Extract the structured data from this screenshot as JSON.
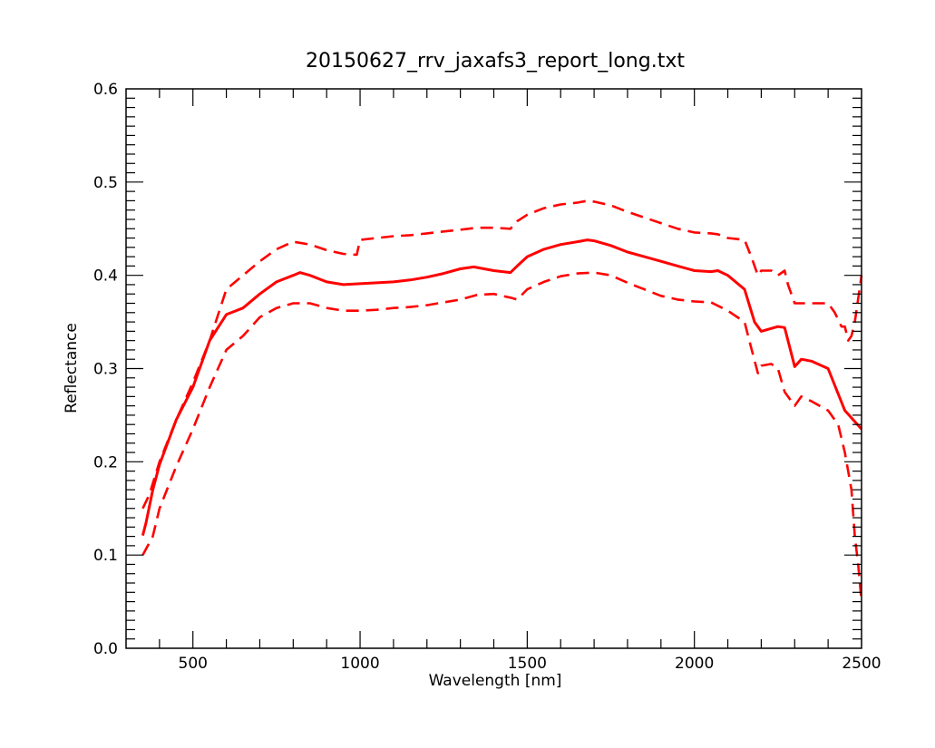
{
  "chart_data": {
    "type": "line",
    "title": "20150627_rrv_jaxafs3_report_long.txt",
    "xlabel": "Wavelength [nm]",
    "ylabel": "Reflectance",
    "xlim": [
      300,
      2500
    ],
    "ylim": [
      0.0,
      0.6
    ],
    "grid": false,
    "legend": "none",
    "x_ticks": [
      500,
      1000,
      1500,
      2000,
      2500
    ],
    "x_tick_labels": [
      "500",
      "1000",
      "1500",
      "2000",
      "2500"
    ],
    "y_ticks": [
      0.0,
      0.1,
      0.2,
      0.3,
      0.4,
      0.5,
      0.6
    ],
    "y_tick_labels": [
      "0.0",
      "0.1",
      "0.2",
      "0.3",
      "0.4",
      "0.5",
      "0.6"
    ],
    "series": [
      {
        "style": "solid",
        "color": "#ff0000",
        "x": [
          350,
          360,
          380,
          400,
          450,
          500,
          550,
          600,
          650,
          700,
          750,
          800,
          820,
          850,
          900,
          950,
          1000,
          1050,
          1100,
          1150,
          1200,
          1250,
          1300,
          1340,
          1400,
          1450,
          1470,
          1500,
          1550,
          1600,
          1650,
          1680,
          1700,
          1750,
          1800,
          1850,
          1900,
          1950,
          2000,
          2050,
          2070,
          2100,
          2150,
          2180,
          2200,
          2220,
          2250,
          2270,
          2300,
          2320,
          2350,
          2400,
          2450,
          2500
        ],
        "y": [
          0.121,
          0.135,
          0.17,
          0.197,
          0.245,
          0.28,
          0.33,
          0.358,
          0.365,
          0.38,
          0.393,
          0.4,
          0.403,
          0.4,
          0.393,
          0.39,
          0.391,
          0.392,
          0.393,
          0.395,
          0.398,
          0.402,
          0.407,
          0.409,
          0.405,
          0.403,
          0.41,
          0.42,
          0.428,
          0.433,
          0.436,
          0.438,
          0.437,
          0.432,
          0.425,
          0.42,
          0.415,
          0.41,
          0.405,
          0.404,
          0.405,
          0.4,
          0.385,
          0.35,
          0.34,
          0.342,
          0.345,
          0.344,
          0.302,
          0.31,
          0.308,
          0.3,
          0.255,
          0.235
        ]
      },
      {
        "style": "dashed",
        "color": "#ff0000",
        "x": [
          350,
          370,
          400,
          450,
          500,
          550,
          600,
          650,
          700,
          750,
          800,
          850,
          900,
          950,
          990,
          1000,
          1050,
          1100,
          1150,
          1200,
          1250,
          1300,
          1350,
          1400,
          1450,
          1470,
          1500,
          1550,
          1600,
          1650,
          1680,
          1700,
          1750,
          1800,
          1850,
          1900,
          1950,
          2000,
          2050,
          2070,
          2100,
          2150,
          2170,
          2190,
          2200,
          2230,
          2250,
          2270,
          2280,
          2300,
          2350,
          2400,
          2420,
          2440,
          2450,
          2460,
          2470,
          2480,
          2500
        ],
        "y": [
          0.15,
          0.165,
          0.2,
          0.245,
          0.285,
          0.33,
          0.385,
          0.4,
          0.415,
          0.428,
          0.436,
          0.433,
          0.427,
          0.423,
          0.422,
          0.438,
          0.44,
          0.442,
          0.443,
          0.445,
          0.447,
          0.449,
          0.451,
          0.451,
          0.45,
          0.458,
          0.465,
          0.472,
          0.476,
          0.478,
          0.48,
          0.479,
          0.475,
          0.468,
          0.462,
          0.456,
          0.45,
          0.446,
          0.445,
          0.444,
          0.44,
          0.438,
          0.42,
          0.4,
          0.405,
          0.405,
          0.4,
          0.405,
          0.39,
          0.37,
          0.37,
          0.37,
          0.36,
          0.345,
          0.345,
          0.33,
          0.335,
          0.35,
          0.4
        ]
      },
      {
        "style": "dashed",
        "color": "#ff0000",
        "x": [
          350,
          380,
          400,
          450,
          500,
          550,
          600,
          650,
          700,
          750,
          800,
          850,
          900,
          950,
          1000,
          1050,
          1100,
          1150,
          1200,
          1250,
          1300,
          1350,
          1400,
          1450,
          1470,
          1500,
          1550,
          1600,
          1650,
          1700,
          1750,
          1800,
          1850,
          1900,
          1950,
          2000,
          2050,
          2100,
          2150,
          2170,
          2190,
          2200,
          2230,
          2250,
          2270,
          2300,
          2320,
          2350,
          2400,
          2430,
          2450,
          2470,
          2480,
          2490,
          2500
        ],
        "y": [
          0.1,
          0.12,
          0.15,
          0.195,
          0.235,
          0.28,
          0.32,
          0.335,
          0.355,
          0.365,
          0.37,
          0.37,
          0.365,
          0.362,
          0.362,
          0.363,
          0.365,
          0.366,
          0.368,
          0.371,
          0.374,
          0.379,
          0.38,
          0.376,
          0.374,
          0.385,
          0.393,
          0.399,
          0.402,
          0.403,
          0.4,
          0.392,
          0.385,
          0.378,
          0.374,
          0.372,
          0.371,
          0.362,
          0.35,
          0.322,
          0.295,
          0.303,
          0.305,
          0.3,
          0.275,
          0.26,
          0.27,
          0.265,
          0.255,
          0.24,
          0.21,
          0.17,
          0.12,
          0.09,
          0.05
        ]
      }
    ]
  }
}
